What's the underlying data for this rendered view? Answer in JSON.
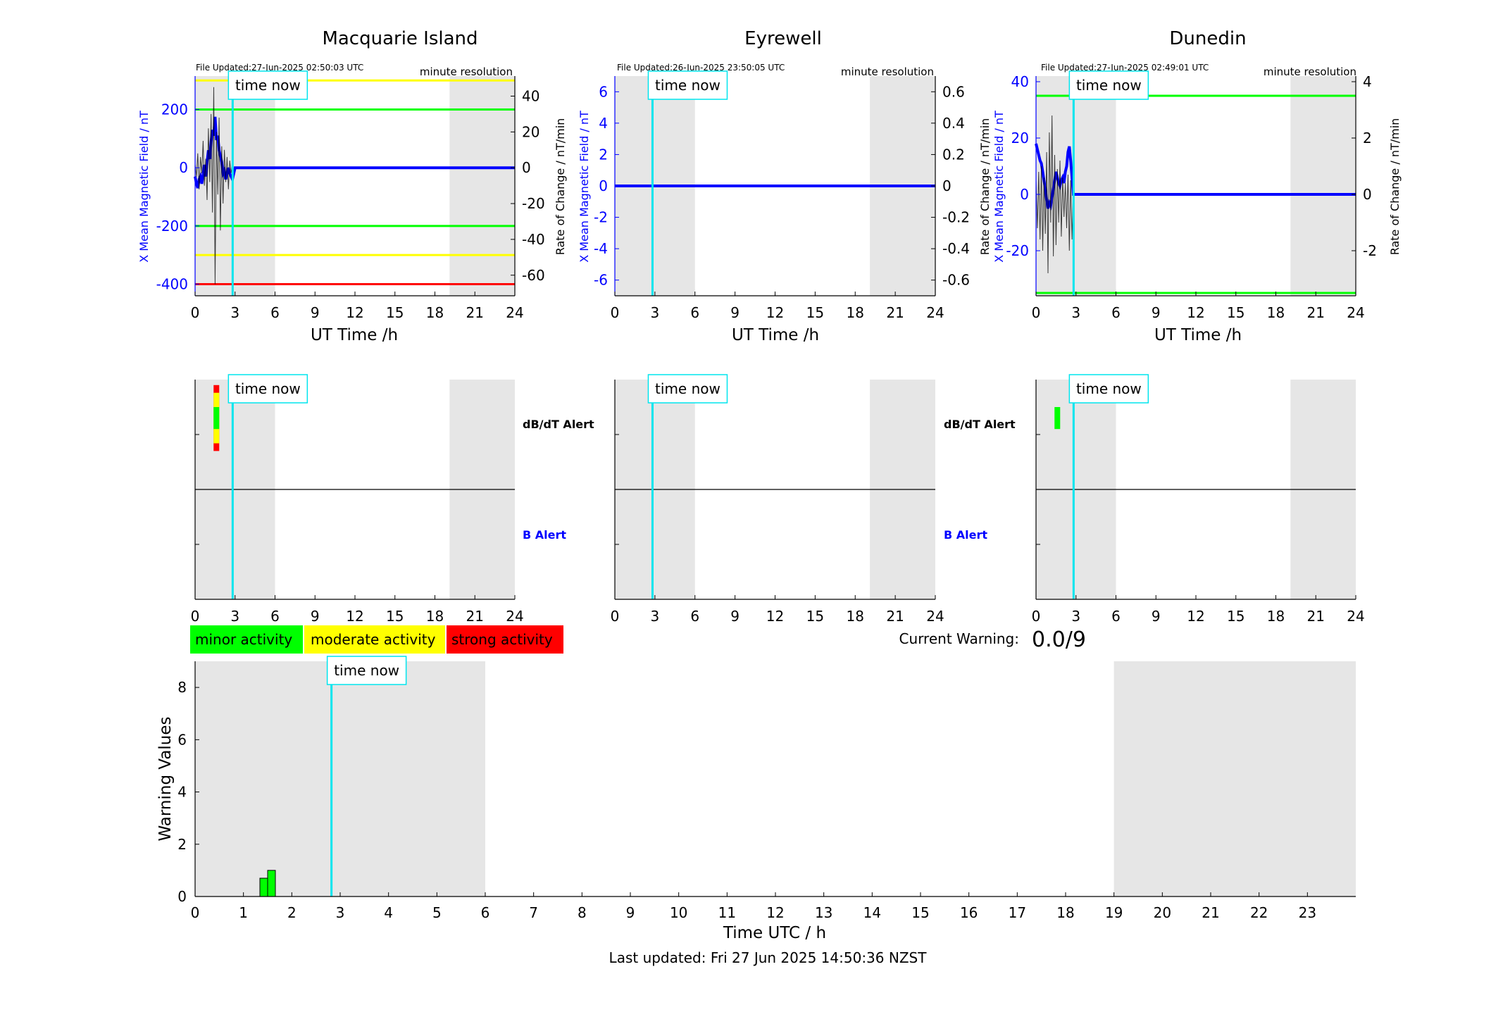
{
  "figure": {
    "footer": "Last updated: Fri 27 Jun 2025 14:50:36 NZST",
    "current_warning_label": "Current Warning:",
    "current_warning_value": "0.0/9",
    "time_now_label": "time now",
    "resolution_label": "minute resolution",
    "dbdt_alert_label": "dB/dT Alert",
    "b_alert_label": "B Alert",
    "legend": [
      {
        "label": "minor activity",
        "color": "#00ff00"
      },
      {
        "label": "moderate activity",
        "color": "#ffff00"
      },
      {
        "label": "strong activity",
        "color": "#ff0000"
      }
    ],
    "colors": {
      "field_line": "#0000ff",
      "rate_line": "#000000",
      "time_now": "#00e5ee",
      "shading": "#e6e6e6",
      "green": "#00ff00",
      "yellow": "#ffff00",
      "red": "#ff0000"
    }
  },
  "chart_data": [
    {
      "type": "line",
      "id": "macquarie",
      "title": "Macquarie Island",
      "file_updated": "File Updated:27-Jun-2025 02:50:03 UTC",
      "xlabel": "UT Time /h",
      "ylabel_left": "X Mean Magnetic Field / nT",
      "ylabel_right": "Rate of Change / nT/min",
      "xlim": [
        0,
        24
      ],
      "xticks": [
        0,
        3,
        6,
        9,
        12,
        15,
        18,
        21,
        24
      ],
      "ylim_left": [
        -440,
        315
      ],
      "yticks_left": [
        -400,
        -200,
        0,
        200
      ],
      "ylim_right": [
        -71.5,
        51.2
      ],
      "yticks_right": [
        -60,
        -40,
        -20,
        0,
        20,
        40
      ],
      "shaded_hours": [
        [
          0,
          6
        ],
        [
          19.1,
          24
        ]
      ],
      "time_now": 2.82,
      "thresholds_left": [
        {
          "value": 300,
          "color": "yellow"
        },
        {
          "value": 200,
          "color": "green"
        },
        {
          "value": -200,
          "color": "green"
        },
        {
          "value": -300,
          "color": "yellow"
        },
        {
          "value": -400,
          "color": "red"
        }
      ],
      "series": [
        {
          "axis": "left",
          "color": "field_line",
          "x": [
            0,
            0.1,
            0.2,
            0.3,
            0.4,
            0.5,
            0.6,
            0.7,
            0.8,
            0.9,
            1.0,
            1.1,
            1.2,
            1.3,
            1.4,
            1.5,
            1.6,
            1.7,
            1.8,
            1.9,
            2.0,
            2.1,
            2.2,
            2.3,
            2.4,
            2.5,
            2.6,
            2.7,
            2.8,
            3.0,
            24
          ],
          "y": [
            -30,
            -55,
            -70,
            -40,
            -30,
            -55,
            -25,
            10,
            -30,
            20,
            60,
            30,
            90,
            130,
            110,
            175,
            95,
            110,
            60,
            40,
            20,
            -20,
            -10,
            -40,
            -20,
            0,
            -20,
            -30,
            -40,
            0,
            0
          ]
        },
        {
          "axis": "right",
          "color": "rate_line",
          "x": [
            0,
            0.1,
            0.2,
            0.3,
            0.4,
            0.5,
            0.6,
            0.7,
            0.8,
            0.9,
            1.0,
            1.1,
            1.2,
            1.3,
            1.4,
            1.5,
            1.6,
            1.7,
            1.8,
            1.9,
            2.0,
            2.1,
            2.2,
            2.3,
            2.4,
            2.5,
            2.6,
            2.7,
            2.8
          ],
          "y": [
            2,
            -5,
            8,
            -12,
            6,
            -3,
            15,
            -10,
            5,
            -18,
            22,
            -8,
            30,
            -25,
            45,
            -65,
            20,
            -15,
            28,
            -35,
            12,
            -20,
            10,
            -8,
            6,
            -12,
            4,
            -3,
            2
          ]
        }
      ]
    },
    {
      "type": "line",
      "id": "eyrewell",
      "title": "Eyrewell",
      "file_updated": "File Updated:26-Jun-2025 23:50:05 UTC",
      "xlabel": "UT Time /h",
      "ylabel_left": "X Mean Magnetic Field / nT",
      "ylabel_right": "Rate of Change / nT/min",
      "xlim": [
        0,
        24
      ],
      "xticks": [
        0,
        3,
        6,
        9,
        12,
        15,
        18,
        21,
        24
      ],
      "ylim_left": [
        -7,
        7
      ],
      "yticks_left": [
        -6,
        -4,
        -2,
        0,
        2,
        4,
        6
      ],
      "ylim_right": [
        -0.7,
        0.7
      ],
      "yticks_right": [
        -0.6,
        -0.4,
        -0.2,
        0,
        0.2,
        0.4,
        0.6
      ],
      "shaded_hours": [
        [
          0,
          6
        ],
        [
          19.1,
          24
        ]
      ],
      "time_now": 2.82,
      "thresholds_left": [],
      "series": [
        {
          "axis": "left",
          "color": "field_line",
          "x": [
            0,
            24
          ],
          "y": [
            0,
            0
          ]
        }
      ]
    },
    {
      "type": "line",
      "id": "dunedin",
      "title": "Dunedin",
      "file_updated": "File Updated:27-Jun-2025 02:49:01 UTC",
      "xlabel": "UT Time /h",
      "ylabel_left": "X Mean Magnetic Field / nT",
      "ylabel_right": "Rate of Change / nT/min",
      "xlim": [
        0,
        24
      ],
      "xticks": [
        0,
        3,
        6,
        9,
        12,
        15,
        18,
        21,
        24
      ],
      "ylim_left": [
        -36,
        42
      ],
      "yticks_left": [
        -20,
        0,
        20,
        40
      ],
      "ylim_right": [
        -3.6,
        4.2
      ],
      "yticks_right": [
        -2,
        0,
        2,
        4
      ],
      "shaded_hours": [
        [
          0,
          6
        ],
        [
          19.1,
          24
        ]
      ],
      "time_now": 2.82,
      "thresholds_left": [
        {
          "value": 35,
          "color": "green"
        },
        {
          "value": -35,
          "color": "green"
        }
      ],
      "series": [
        {
          "axis": "left",
          "color": "field_line",
          "x": [
            0,
            0.1,
            0.2,
            0.3,
            0.4,
            0.5,
            0.6,
            0.7,
            0.8,
            0.9,
            1.0,
            1.1,
            1.2,
            1.3,
            1.4,
            1.5,
            1.6,
            1.7,
            1.8,
            1.9,
            2.0,
            2.1,
            2.2,
            2.3,
            2.4,
            2.5,
            2.6,
            2.7,
            2.8,
            3.0,
            24
          ],
          "y": [
            18,
            16,
            14,
            12,
            11,
            8,
            5,
            2,
            -2,
            -5,
            -3,
            -4,
            -1,
            2,
            5,
            8,
            6,
            4,
            3,
            5,
            6,
            4,
            8,
            10,
            15,
            17,
            12,
            6,
            0,
            0,
            0
          ]
        },
        {
          "axis": "right",
          "color": "rate_line",
          "x": [
            0,
            0.1,
            0.2,
            0.3,
            0.4,
            0.5,
            0.6,
            0.7,
            0.8,
            0.9,
            1.0,
            1.1,
            1.2,
            1.3,
            1.4,
            1.5,
            1.6,
            1.7,
            1.8,
            1.9,
            2.0,
            2.1,
            2.2,
            2.3,
            2.4,
            2.5,
            2.6,
            2.7,
            2.8
          ],
          "y": [
            0.5,
            -1.2,
            0.8,
            -1.6,
            1.0,
            -2.0,
            0.6,
            -1.4,
            1.5,
            -2.8,
            2.2,
            -1.0,
            2.8,
            -2.2,
            1.4,
            -1.8,
            0.9,
            -1.0,
            1.2,
            -1.5,
            0.6,
            -0.8,
            0.4,
            -1.2,
            0.7,
            -2.0,
            0.5,
            -1.6,
            0.2
          ]
        }
      ]
    },
    {
      "type": "bar",
      "id": "macquarie_alert",
      "xlim": [
        0,
        24
      ],
      "xticks": [
        0,
        3,
        6,
        9,
        12,
        15,
        18,
        21,
        24
      ],
      "shaded_hours": [
        [
          0,
          6
        ],
        [
          19.1,
          24
        ]
      ],
      "time_now": 2.82,
      "dbdt_alert": [
        {
          "x": 1.6,
          "level": "red",
          "lo": 0.35,
          "hi": 0.95
        },
        {
          "x": 1.6,
          "level": "yellow",
          "lo": 0.42,
          "hi": 0.88
        },
        {
          "x": 1.6,
          "level": "green",
          "lo": 0.55,
          "hi": 0.75
        }
      ],
      "b_alert": []
    },
    {
      "type": "bar",
      "id": "eyrewell_alert",
      "xlim": [
        0,
        24
      ],
      "xticks": [
        0,
        3,
        6,
        9,
        12,
        15,
        18,
        21,
        24
      ],
      "shaded_hours": [
        [
          0,
          6
        ],
        [
          19.1,
          24
        ]
      ],
      "time_now": 2.82,
      "dbdt_alert": [],
      "b_alert": []
    },
    {
      "type": "bar",
      "id": "dunedin_alert",
      "xlim": [
        0,
        24
      ],
      "xticks": [
        0,
        3,
        6,
        9,
        12,
        15,
        18,
        21,
        24
      ],
      "shaded_hours": [
        [
          0,
          6
        ],
        [
          19.1,
          24
        ]
      ],
      "time_now": 2.82,
      "dbdt_alert": [
        {
          "x": 1.6,
          "level": "green",
          "lo": 0.55,
          "hi": 0.75
        }
      ],
      "b_alert": []
    },
    {
      "type": "bar",
      "id": "warning",
      "xlabel": "Time UTC / h",
      "ylabel": "Warning Values",
      "xlim": [
        0,
        24
      ],
      "xticks": [
        0,
        1,
        2,
        3,
        4,
        5,
        6,
        7,
        8,
        9,
        10,
        11,
        12,
        13,
        14,
        15,
        16,
        17,
        18,
        19,
        20,
        21,
        22,
        23
      ],
      "ylim": [
        0,
        9
      ],
      "yticks": [
        0,
        2,
        4,
        6,
        8
      ],
      "shaded_hours": [
        [
          0,
          6
        ],
        [
          19,
          24
        ]
      ],
      "time_now": 2.82,
      "bars": [
        {
          "x": 1.42,
          "width": 0.16,
          "value": 0.7,
          "color": "green"
        },
        {
          "x": 1.58,
          "width": 0.16,
          "value": 1.0,
          "color": "green"
        }
      ]
    }
  ]
}
